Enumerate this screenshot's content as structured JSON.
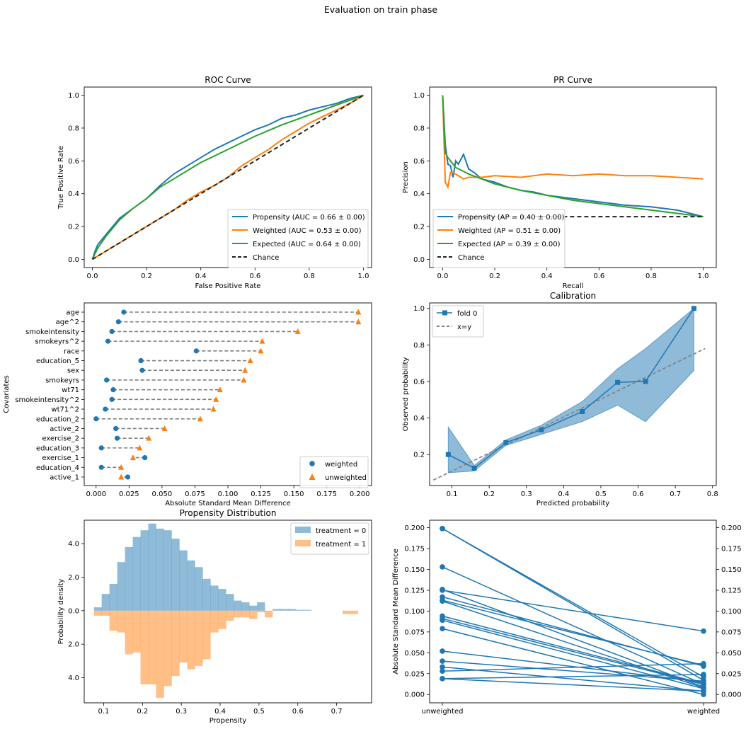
{
  "figure": {
    "suptitle": "Evaluation on train phase"
  },
  "colors": {
    "blue": "#1f77b4",
    "orange": "#ff7f0e",
    "green": "#2ca02c",
    "chance": "#222222",
    "gray": "#808080"
  },
  "chart_data": [
    {
      "id": "roc",
      "type": "line",
      "title": "ROC Curve",
      "xlabel": "False Positive Rate",
      "ylabel": "True Positive Rate",
      "xlim": [
        -0.03,
        1.03
      ],
      "ylim": [
        -0.05,
        1.05
      ],
      "xticks": [
        0.0,
        0.2,
        0.4,
        0.6,
        0.8,
        1.0
      ],
      "yticks": [
        0.0,
        0.2,
        0.4,
        0.6,
        0.8,
        1.0
      ],
      "legend": "bottom-right",
      "series": [
        {
          "name": "Propensity (AUC = 0.66 ± 0.00)",
          "color": "#1f77b4",
          "style": "solid",
          "x": [
            0,
            0.01,
            0.02,
            0.05,
            0.1,
            0.15,
            0.2,
            0.25,
            0.3,
            0.35,
            0.4,
            0.45,
            0.5,
            0.55,
            0.6,
            0.65,
            0.7,
            0.75,
            0.8,
            0.85,
            0.9,
            0.95,
            1.0
          ],
          "y": [
            0,
            0.05,
            0.09,
            0.15,
            0.25,
            0.31,
            0.37,
            0.45,
            0.52,
            0.57,
            0.62,
            0.67,
            0.71,
            0.75,
            0.79,
            0.82,
            0.86,
            0.88,
            0.91,
            0.93,
            0.95,
            0.98,
            1.0
          ]
        },
        {
          "name": "Weighted (AUC = 0.53 ± 0.00)",
          "color": "#ff7f0e",
          "style": "solid",
          "x": [
            0,
            0.1,
            0.2,
            0.3,
            0.35,
            0.4,
            0.45,
            0.5,
            0.55,
            0.6,
            0.65,
            0.7,
            0.75,
            0.8,
            0.85,
            0.9,
            0.95,
            1.0
          ],
          "y": [
            0,
            0.1,
            0.2,
            0.3,
            0.36,
            0.41,
            0.45,
            0.5,
            0.57,
            0.62,
            0.67,
            0.73,
            0.78,
            0.83,
            0.87,
            0.91,
            0.95,
            1.0
          ]
        },
        {
          "name": "Expected (AUC = 0.64 ± 0.00)",
          "color": "#2ca02c",
          "style": "solid",
          "x": [
            0,
            0.02,
            0.05,
            0.1,
            0.15,
            0.2,
            0.25,
            0.3,
            0.35,
            0.4,
            0.5,
            0.6,
            0.7,
            0.8,
            0.9,
            1.0
          ],
          "y": [
            0,
            0.07,
            0.14,
            0.24,
            0.31,
            0.37,
            0.44,
            0.49,
            0.54,
            0.59,
            0.67,
            0.75,
            0.82,
            0.88,
            0.94,
            1.0
          ]
        },
        {
          "name": "Chance",
          "color": "#222222",
          "style": "dashed",
          "x": [
            0,
            1
          ],
          "y": [
            0,
            1
          ]
        }
      ]
    },
    {
      "id": "pr",
      "type": "line",
      "title": "PR Curve",
      "xlabel": "Recall",
      "ylabel": "Precision",
      "xlim": [
        -0.05,
        1.05
      ],
      "ylim": [
        -0.05,
        1.05
      ],
      "xticks": [
        0.0,
        0.2,
        0.4,
        0.6,
        0.8,
        1.0
      ],
      "yticks": [
        0.0,
        0.2,
        0.4,
        0.6,
        0.8,
        1.0
      ],
      "legend": "bottom-left",
      "series": [
        {
          "name": "Propensity (AP = 0.40 ± 0.00)",
          "color": "#1f77b4",
          "style": "solid",
          "x": [
            0,
            0.01,
            0.02,
            0.03,
            0.04,
            0.05,
            0.06,
            0.08,
            0.1,
            0.12,
            0.15,
            0.2,
            0.25,
            0.3,
            0.35,
            0.4,
            0.5,
            0.6,
            0.7,
            0.8,
            0.9,
            0.95,
            1.0
          ],
          "y": [
            1.0,
            0.7,
            0.58,
            0.57,
            0.5,
            0.6,
            0.58,
            0.64,
            0.55,
            0.53,
            0.49,
            0.47,
            0.44,
            0.42,
            0.41,
            0.39,
            0.37,
            0.35,
            0.33,
            0.32,
            0.3,
            0.28,
            0.26
          ]
        },
        {
          "name": "Weighted (AP = 0.51 ± 0.00)",
          "color": "#ff7f0e",
          "style": "solid",
          "x": [
            0,
            0.01,
            0.02,
            0.03,
            0.05,
            0.08,
            0.1,
            0.15,
            0.2,
            0.3,
            0.4,
            0.5,
            0.6,
            0.7,
            0.8,
            0.9,
            1.0
          ],
          "y": [
            1.0,
            0.47,
            0.44,
            0.53,
            0.52,
            0.49,
            0.5,
            0.5,
            0.51,
            0.5,
            0.52,
            0.51,
            0.52,
            0.51,
            0.51,
            0.5,
            0.49
          ]
        },
        {
          "name": "Expected (AP = 0.39 ± 0.00)",
          "color": "#2ca02c",
          "style": "solid",
          "x": [
            0,
            0.01,
            0.02,
            0.05,
            0.1,
            0.15,
            0.2,
            0.3,
            0.4,
            0.5,
            0.6,
            0.7,
            0.8,
            0.9,
            1.0
          ],
          "y": [
            1.0,
            0.65,
            0.62,
            0.56,
            0.52,
            0.49,
            0.46,
            0.42,
            0.39,
            0.36,
            0.34,
            0.32,
            0.3,
            0.28,
            0.26
          ]
        },
        {
          "name": "Chance",
          "color": "#222222",
          "style": "dashed",
          "x": [
            0,
            1
          ],
          "y": [
            0.26,
            0.26
          ]
        }
      ]
    },
    {
      "id": "balance",
      "type": "scatter",
      "xlabel": "Absolute Standard Mean Difference",
      "ylabel": "Covariates",
      "xlim": [
        -0.009,
        0.209
      ],
      "xticks": [
        "0.000",
        "0.025",
        "0.050",
        "0.075",
        "0.100",
        "0.125",
        "0.150",
        "0.175",
        "0.200"
      ],
      "legend": "bottom-right",
      "series_names": {
        "weighted": "weighted",
        "unweighted": "unweighted"
      },
      "covariates": [
        "age",
        "age^2",
        "smokeintensity",
        "smokeyrs^2",
        "race",
        "education_5",
        "sex",
        "smokeyrs",
        "wt71",
        "smokeintensity^2",
        "wt71^2",
        "education_2",
        "active_2",
        "exercise_2",
        "education_3",
        "exercise_1",
        "education_4",
        "active_1"
      ],
      "weighted": [
        0.021,
        0.017,
        0.012,
        0.009,
        0.076,
        0.034,
        0.035,
        0.008,
        0.013,
        0.012,
        0.007,
        0.0,
        0.015,
        0.016,
        0.004,
        0.037,
        0.004,
        0.024
      ],
      "unweighted": [
        0.199,
        0.199,
        0.153,
        0.126,
        0.125,
        0.117,
        0.113,
        0.112,
        0.094,
        0.091,
        0.089,
        0.079,
        0.052,
        0.04,
        0.033,
        0.028,
        0.019,
        0.019
      ]
    },
    {
      "id": "calibration",
      "type": "line",
      "title": "Calibration",
      "xlabel": "Predicted probability",
      "ylabel": "Observed probability",
      "xlim": [
        0.04,
        0.81
      ],
      "ylim": [
        0.03,
        1.03
      ],
      "xticks": [
        0.1,
        0.2,
        0.3,
        0.4,
        0.5,
        0.6,
        0.7,
        0.8
      ],
      "yticks": [
        0.2,
        0.4,
        0.6,
        0.8,
        1.0
      ],
      "legend": "top-left",
      "fold_name": "fold 0",
      "diag_name": "x=y",
      "diag": {
        "x": [
          0.05,
          0.78
        ],
        "y": [
          0.06,
          0.78
        ]
      },
      "x": [
        0.09,
        0.16,
        0.245,
        0.34,
        0.45,
        0.545,
        0.62,
        0.75
      ],
      "y": [
        0.2,
        0.125,
        0.265,
        0.335,
        0.435,
        0.595,
        0.6,
        1.0
      ],
      "lower": [
        0.1,
        0.11,
        0.25,
        0.31,
        0.38,
        0.47,
        0.38,
        0.66
      ],
      "upper": [
        0.35,
        0.14,
        0.28,
        0.36,
        0.49,
        0.67,
        0.78,
        1.0
      ]
    },
    {
      "id": "propensity",
      "type": "bar",
      "title": "Propensity Distribution",
      "xlabel": "Propensity",
      "ylabel": "Probability density",
      "xlim": [
        0.05,
        0.79
      ],
      "ylim": [
        -5.5,
        5.4
      ],
      "xticks": [
        0.1,
        0.2,
        0.3,
        0.4,
        0.5,
        0.6,
        0.7
      ],
      "yticks": [
        4.0,
        2.0,
        0.0,
        2.0,
        4.0
      ],
      "ytick_values": [
        4.0,
        2.0,
        0.0,
        -2.0,
        -4.0
      ],
      "legend": "top-right",
      "bin_start": 0.075,
      "bin_width": 0.02,
      "series": [
        {
          "name": "treatment = 0",
          "color": "#1f77b4",
          "values": [
            0.2,
            1.0,
            1.6,
            2.9,
            3.8,
            4.4,
            4.8,
            5.2,
            4.9,
            4.8,
            4.3,
            3.6,
            3.0,
            2.6,
            1.9,
            1.5,
            1.3,
            1.0,
            0.6,
            0.5,
            0.3,
            0.5,
            0.0,
            0.1,
            0.1,
            0.1,
            0.05,
            0.05
          ]
        },
        {
          "name": "treatment = 1",
          "color": "#ff7f0e",
          "values": [
            0.3,
            0.3,
            1.2,
            1.3,
            2.6,
            2.5,
            4.4,
            4.4,
            5.2,
            4.5,
            3.9,
            3.1,
            3.5,
            3.3,
            2.9,
            1.3,
            1.1,
            0.6,
            0.4,
            0.4,
            0.5,
            0.1,
            0.4,
            0.0,
            0.0,
            0.0,
            0.0,
            0.0,
            0.0,
            0.0,
            0.0,
            0.0,
            0.2,
            0.2
          ]
        }
      ]
    },
    {
      "id": "slope",
      "type": "line",
      "ylabel": "Absolute Standard Mean Difference",
      "categories": [
        "unweighted",
        "weighted"
      ],
      "ylim": [
        -0.01,
        0.209
      ],
      "yticks": [
        "0.000",
        "0.025",
        "0.050",
        "0.075",
        "0.100",
        "0.125",
        "0.150",
        "0.175",
        "0.200"
      ],
      "pairs": [
        [
          0.199,
          0.021
        ],
        [
          0.199,
          0.017
        ],
        [
          0.153,
          0.012
        ],
        [
          0.126,
          0.009
        ],
        [
          0.125,
          0.076
        ],
        [
          0.117,
          0.034
        ],
        [
          0.113,
          0.035
        ],
        [
          0.112,
          0.008
        ],
        [
          0.094,
          0.013
        ],
        [
          0.091,
          0.012
        ],
        [
          0.089,
          0.007
        ],
        [
          0.079,
          0.0
        ],
        [
          0.052,
          0.015
        ],
        [
          0.04,
          0.016
        ],
        [
          0.033,
          0.004
        ],
        [
          0.028,
          0.037
        ],
        [
          0.019,
          0.004
        ],
        [
          0.019,
          0.024
        ]
      ]
    }
  ]
}
